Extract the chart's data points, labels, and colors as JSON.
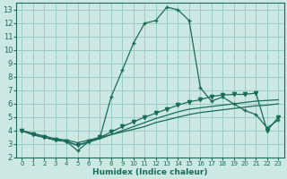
{
  "xlabel": "Humidex (Indice chaleur)",
  "xlim": [
    -0.5,
    23.5
  ],
  "ylim": [
    2,
    13.5
  ],
  "yticks": [
    2,
    3,
    4,
    5,
    6,
    7,
    8,
    9,
    10,
    11,
    12,
    13
  ],
  "xticks": [
    0,
    1,
    2,
    3,
    4,
    5,
    6,
    7,
    8,
    9,
    10,
    11,
    12,
    13,
    14,
    15,
    16,
    17,
    18,
    19,
    20,
    21,
    22,
    23
  ],
  "background_color": "#cce8e2",
  "grid_color": "#99ccc4",
  "line_color": "#1a6b5a",
  "lines": [
    {
      "x": [
        0,
        1,
        2,
        3,
        4,
        5,
        6,
        7,
        8,
        9,
        10,
        11,
        12,
        13,
        14,
        15,
        16,
        17,
        18,
        19,
        20,
        21,
        22,
        23
      ],
      "y": [
        4.0,
        3.7,
        3.5,
        3.3,
        3.2,
        2.5,
        3.2,
        3.5,
        6.5,
        8.5,
        10.5,
        12.0,
        12.2,
        13.2,
        13.0,
        12.2,
        7.2,
        6.2,
        6.5,
        6.0,
        5.5,
        5.2,
        4.2,
        4.8
      ],
      "marker": "+",
      "markersize": 3.5
    },
    {
      "x": [
        0,
        1,
        2,
        3,
        4,
        5,
        6,
        7,
        8,
        9,
        10,
        11,
        12,
        13,
        14,
        15,
        16,
        17,
        18,
        19,
        20,
        21,
        22,
        23
      ],
      "y": [
        4.0,
        3.8,
        3.6,
        3.4,
        3.3,
        3.1,
        3.3,
        3.5,
        3.7,
        3.9,
        4.1,
        4.3,
        4.6,
        4.8,
        5.0,
        5.2,
        5.35,
        5.45,
        5.55,
        5.65,
        5.75,
        5.85,
        5.9,
        6.0
      ],
      "marker": null,
      "markersize": 0
    },
    {
      "x": [
        0,
        1,
        2,
        3,
        4,
        5,
        6,
        7,
        8,
        9,
        10,
        11,
        12,
        13,
        14,
        15,
        16,
        17,
        18,
        19,
        20,
        21,
        22,
        23
      ],
      "y": [
        4.0,
        3.7,
        3.5,
        3.3,
        3.2,
        2.9,
        3.15,
        3.4,
        3.7,
        4.0,
        4.3,
        4.6,
        4.9,
        5.15,
        5.4,
        5.6,
        5.7,
        5.8,
        5.9,
        6.0,
        6.1,
        6.2,
        6.25,
        6.3
      ],
      "marker": null,
      "markersize": 0
    },
    {
      "x": [
        0,
        1,
        2,
        3,
        4,
        5,
        6,
        7,
        8,
        9,
        10,
        11,
        12,
        13,
        14,
        15,
        16,
        17,
        18,
        19,
        20,
        21,
        22,
        23
      ],
      "y": [
        4.0,
        3.7,
        3.5,
        3.3,
        3.2,
        2.9,
        3.2,
        3.5,
        3.9,
        4.3,
        4.65,
        5.0,
        5.3,
        5.6,
        5.9,
        6.15,
        6.3,
        6.55,
        6.65,
        6.7,
        6.7,
        6.8,
        4.0,
        5.0
      ],
      "marker": "v",
      "markersize": 3.0
    }
  ],
  "xlabel_fontsize": 6.5,
  "tick_fontsize_x": 5.0,
  "tick_fontsize_y": 6.0
}
